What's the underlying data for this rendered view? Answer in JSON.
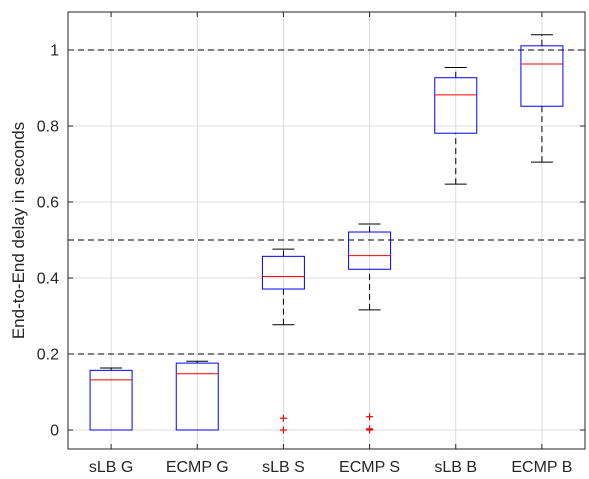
{
  "chart_data": {
    "type": "box",
    "title": "",
    "xlabel": "",
    "ylabel": "End-to-End delay in seconds",
    "ylim": [
      -0.05,
      1.1
    ],
    "yticks": [
      0,
      0.2,
      0.4,
      0.6,
      0.8,
      1
    ],
    "ytick_labels": [
      "0",
      "0.2",
      "0.4",
      "0.6",
      "0.8",
      "1"
    ],
    "grid": true,
    "categories": [
      "sLB G",
      "ECMP G",
      "sLB S",
      "ECMP S",
      "sLB B",
      "ECMP B"
    ],
    "boxes": [
      {
        "whisker_low": 0.0,
        "q1": 0.0,
        "median": 0.132,
        "q3": 0.157,
        "whisker_high": 0.163,
        "outliers": []
      },
      {
        "whisker_low": 0.0,
        "q1": 0.0,
        "median": 0.148,
        "q3": 0.176,
        "whisker_high": 0.181,
        "outliers": []
      },
      {
        "whisker_low": 0.277,
        "q1": 0.371,
        "median": 0.404,
        "q3": 0.457,
        "whisker_high": 0.476,
        "outliers": [
          0.031,
          0.0
        ]
      },
      {
        "whisker_low": 0.316,
        "q1": 0.423,
        "median": 0.459,
        "q3": 0.521,
        "whisker_high": 0.542,
        "outliers": [
          0.035,
          0.003,
          0.0
        ]
      },
      {
        "whisker_low": 0.647,
        "q1": 0.781,
        "median": 0.882,
        "q3": 0.927,
        "whisker_high": 0.954,
        "outliers": []
      },
      {
        "whisker_low": 0.705,
        "q1": 0.852,
        "median": 0.963,
        "q3": 1.011,
        "whisker_high": 1.04,
        "outliers": []
      }
    ],
    "reference_lines": [
      0.2,
      0.5,
      1.0
    ],
    "colors": {
      "box": "#0000ff",
      "median": "#ff0000",
      "whisker": "#000000",
      "outlier": "#ff0000",
      "grid": "#dcdcdc",
      "axis": "#262626",
      "reference": "#000000"
    }
  }
}
